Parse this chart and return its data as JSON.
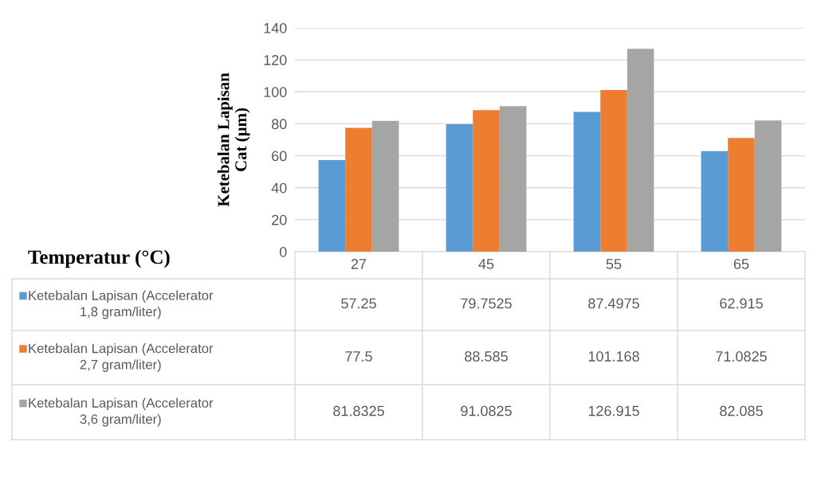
{
  "chart_data": {
    "type": "bar",
    "ylabel": "Ketebalan Lapisan Cat (µm)",
    "xlabel": "Temperatur (°C)",
    "categories": [
      "27",
      "45",
      "55",
      "65"
    ],
    "series": [
      {
        "name": "Ketebalan Lapisan (Accelerator 1,8 gram/liter)",
        "color": "#5b9bd5",
        "values": [
          57.25,
          79.7525,
          87.4975,
          62.915
        ]
      },
      {
        "name": "Ketebalan Lapisan (Accelerator 2,7 gram/liter)",
        "color": "#ed7d31",
        "values": [
          77.5,
          88.585,
          101.168,
          71.0825
        ]
      },
      {
        "name": "Ketebalan Lapisan (Accelerator 3,6 gram/liter)",
        "color": "#a5a5a5",
        "values": [
          81.8325,
          91.0825,
          126.915,
          82.085
        ]
      }
    ],
    "ylim": [
      0,
      140
    ],
    "yticks": [
      0,
      20,
      40,
      60,
      80,
      100,
      120,
      140
    ],
    "grid": "y",
    "legend": "bottom",
    "data_labels": true,
    "tick_labels": "y"
  }
}
